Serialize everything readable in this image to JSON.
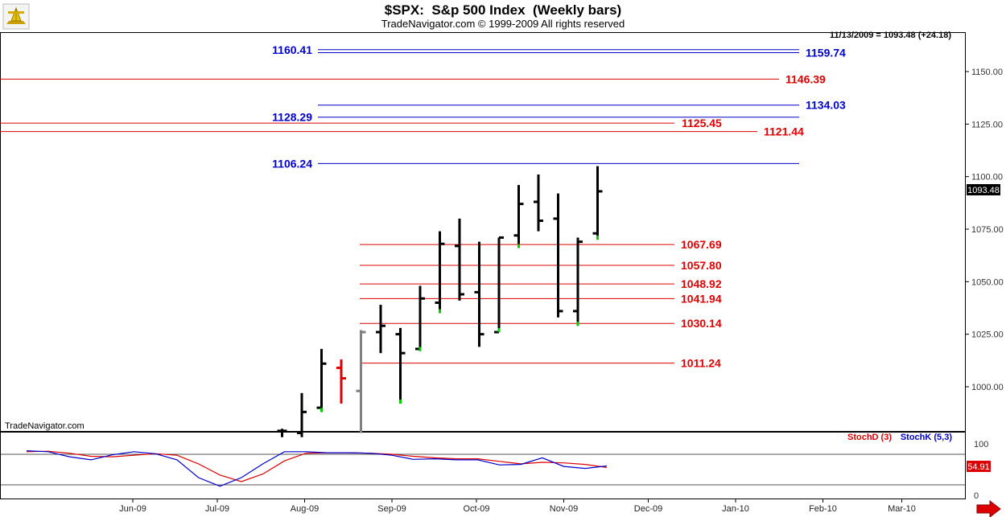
{
  "title": "$SPX:  S&p 500 Index  (Weekly bars)",
  "subtitle": "TradeNavigator.com © 1999-2009 All rights reserved",
  "info_readout": "11/13/2009 = 1093.48 (+24.18)",
  "last_price_badge": "1093.48",
  "watermark": "TradeNavigator.com",
  "indicator": {
    "stoch_d_label": "StochD (3)",
    "stoch_k_label": "StochK (5,3)",
    "last_value_badge": "54.91",
    "scale_top": "100",
    "scale_bottom": "0",
    "d_color": "#dd0000",
    "k_color": "#0000cc",
    "stoch_k": [
      88,
      86,
      76,
      70,
      80,
      86,
      82,
      70,
      35,
      18,
      35,
      62,
      86,
      86,
      84,
      84,
      83,
      79,
      71,
      72,
      70,
      70,
      60,
      61,
      74,
      57,
      53,
      58
    ],
    "stoch_d": [
      86,
      87,
      83,
      77,
      76,
      79,
      82,
      79,
      62,
      40,
      27,
      42,
      68,
      83,
      84,
      84,
      83,
      81,
      77,
      74,
      72,
      72,
      67,
      62,
      65,
      64,
      61,
      55
    ]
  },
  "colors": {
    "support": "#dd0000",
    "resistance": "#0000cc",
    "up_bar": "#000000",
    "down_bar": "#dd0000",
    "inside_bar": "#808080",
    "close_marker": "#00cc00"
  },
  "chart_data": {
    "type": "ohlc",
    "title": "$SPX:  S&p 500 Index  (Weekly bars)",
    "ylim": [
      980,
      1160
    ],
    "y_ticks": [
      "1000.00",
      "1025.00",
      "1050.00",
      "1075.00",
      "1100.00",
      "1125.00",
      "1150.00"
    ],
    "x_ticks": [
      "Jun-09",
      "Jul-09",
      "Aug-09",
      "Sep-09",
      "Oct-09",
      "Nov-09",
      "Dec-09",
      "Jan-10",
      "Feb-10",
      "Mar-10"
    ],
    "bars": [
      {
        "date": "2009-07-24",
        "open": 979,
        "high": 980,
        "low": 976,
        "close": 979,
        "color": "up"
      },
      {
        "date": "2009-07-31",
        "open": 978,
        "high": 997,
        "low": 976,
        "close": 988,
        "color": "up"
      },
      {
        "date": "2009-08-07",
        "open": 990,
        "high": 1018,
        "low": 988,
        "close": 1011,
        "color": "up"
      },
      {
        "date": "2009-08-14",
        "open": 1009,
        "high": 1013,
        "low": 992,
        "close": 1004,
        "color": "down"
      },
      {
        "date": "2009-08-21",
        "open": 998,
        "high": 1027,
        "low": 978,
        "close": 1026,
        "color": "inside"
      },
      {
        "date": "2009-08-28",
        "open": 1026,
        "high": 1039,
        "low": 1016,
        "close": 1029,
        "color": "up"
      },
      {
        "date": "2009-09-04",
        "open": 1025,
        "high": 1028,
        "low": 992,
        "close": 1016,
        "color": "up"
      },
      {
        "date": "2009-09-11",
        "open": 1018,
        "high": 1048,
        "low": 1017,
        "close": 1042,
        "color": "up"
      },
      {
        "date": "2009-09-18",
        "open": 1040,
        "high": 1074,
        "low": 1035,
        "close": 1068,
        "color": "up"
      },
      {
        "date": "2009-09-25",
        "open": 1067,
        "high": 1080,
        "low": 1041,
        "close": 1044,
        "color": "up"
      },
      {
        "date": "2009-10-02",
        "open": 1045,
        "high": 1069,
        "low": 1019,
        "close": 1025,
        "color": "up"
      },
      {
        "date": "2009-10-09",
        "open": 1026,
        "high": 1071,
        "low": 1026,
        "close": 1071,
        "color": "up"
      },
      {
        "date": "2009-10-16",
        "open": 1072,
        "high": 1096,
        "low": 1066,
        "close": 1087,
        "color": "up"
      },
      {
        "date": "2009-10-23",
        "open": 1088,
        "high": 1101,
        "low": 1074,
        "close": 1079,
        "color": "up"
      },
      {
        "date": "2009-10-30",
        "open": 1080,
        "high": 1092,
        "low": 1033,
        "close": 1036,
        "color": "up"
      },
      {
        "date": "2009-11-06",
        "open": 1036,
        "high": 1071,
        "low": 1029,
        "close": 1069,
        "color": "up"
      },
      {
        "date": "2009-11-13",
        "open": 1073,
        "high": 1105,
        "low": 1070,
        "close": 1093,
        "color": "up"
      }
    ],
    "levels": [
      {
        "value": 1160.41,
        "label": "1160.41",
        "kind": "resistance",
        "label_side": "left"
      },
      {
        "value": 1159.74,
        "label": "1159.74",
        "kind": "resistance",
        "label_side": "right"
      },
      {
        "value": 1146.39,
        "label": "1146.39",
        "kind": "support",
        "label_side": "right"
      },
      {
        "value": 1134.03,
        "label": "1134.03",
        "kind": "resistance",
        "label_side": "right"
      },
      {
        "value": 1128.29,
        "label": "1128.29",
        "kind": "resistance",
        "label_side": "left"
      },
      {
        "value": 1125.45,
        "label": "1125.45",
        "kind": "support",
        "label_side": "right"
      },
      {
        "value": 1121.44,
        "label": "1121.44",
        "kind": "support",
        "label_side": "right"
      },
      {
        "value": 1106.24,
        "label": "1106.24",
        "kind": "resistance",
        "label_side": "left"
      },
      {
        "value": 1067.69,
        "label": "1067.69",
        "kind": "support",
        "label_side": "right"
      },
      {
        "value": 1057.8,
        "label": "1057.80",
        "kind": "support",
        "label_side": "right"
      },
      {
        "value": 1048.92,
        "label": "1048.92",
        "kind": "support",
        "label_side": "right"
      },
      {
        "value": 1041.94,
        "label": "1041.94",
        "kind": "support",
        "label_side": "right"
      },
      {
        "value": 1030.14,
        "label": "1030.14",
        "kind": "support",
        "label_side": "right"
      },
      {
        "value": 1011.24,
        "label": "1011.24",
        "kind": "support",
        "label_side": "right"
      }
    ]
  }
}
